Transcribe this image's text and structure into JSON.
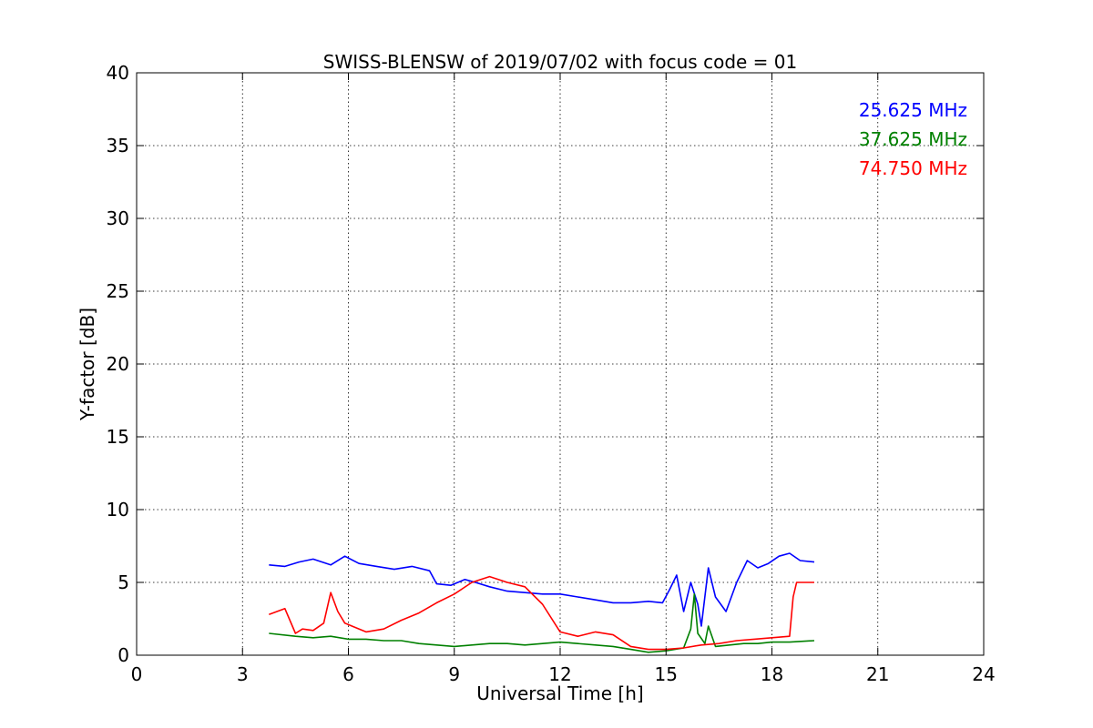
{
  "chart_data": {
    "type": "line",
    "title": "SWISS-BLENSW of 2019/07/02 with focus code = 01",
    "xlabel": "Universal Time [h]",
    "ylabel": "Y-factor [dB]",
    "xlim": [
      0,
      24
    ],
    "ylim": [
      0,
      40
    ],
    "xticks": [
      0,
      3,
      6,
      9,
      12,
      15,
      18,
      21,
      24
    ],
    "yticks": [
      0,
      5,
      10,
      15,
      20,
      25,
      30,
      35,
      40
    ],
    "grid": true,
    "legend_position": "top-right",
    "series": [
      {
        "name": "25.625 MHz",
        "color": "#0000ff",
        "x": [
          3.75,
          4.2,
          4.6,
          5.0,
          5.5,
          5.9,
          6.3,
          6.8,
          7.3,
          7.8,
          8.3,
          8.5,
          8.9,
          9.3,
          9.6,
          10.0,
          10.5,
          11.0,
          11.5,
          12.0,
          12.5,
          13.0,
          13.5,
          14.0,
          14.5,
          14.9,
          15.1,
          15.3,
          15.5,
          15.7,
          15.9,
          16.0,
          16.2,
          16.4,
          16.7,
          17.0,
          17.3,
          17.6,
          17.9,
          18.2,
          18.5,
          18.8,
          19.2
        ],
        "y": [
          6.2,
          6.1,
          6.4,
          6.6,
          6.2,
          6.8,
          6.3,
          6.1,
          5.9,
          6.1,
          5.8,
          4.9,
          4.8,
          5.2,
          5.0,
          4.7,
          4.4,
          4.3,
          4.2,
          4.2,
          4.0,
          3.8,
          3.6,
          3.6,
          3.7,
          3.6,
          4.5,
          5.5,
          3.0,
          5.0,
          3.5,
          2.0,
          6.0,
          4.0,
          3.0,
          5.0,
          6.5,
          6.0,
          6.3,
          6.8,
          7.0,
          6.5,
          6.4
        ]
      },
      {
        "name": "37.625 MHz",
        "color": "#008000",
        "x": [
          3.75,
          4.5,
          5.0,
          5.5,
          6.0,
          6.5,
          7.0,
          7.5,
          8.0,
          8.5,
          9.0,
          9.5,
          10.0,
          10.5,
          11.0,
          11.5,
          12.0,
          12.5,
          13.0,
          13.5,
          14.0,
          14.5,
          15.0,
          15.5,
          15.7,
          15.8,
          15.9,
          16.1,
          16.2,
          16.4,
          16.8,
          17.2,
          17.6,
          18.0,
          18.5,
          19.2
        ],
        "y": [
          1.5,
          1.3,
          1.2,
          1.3,
          1.1,
          1.1,
          1.0,
          1.0,
          0.8,
          0.7,
          0.6,
          0.7,
          0.8,
          0.8,
          0.7,
          0.8,
          0.9,
          0.8,
          0.7,
          0.6,
          0.4,
          0.2,
          0.3,
          0.5,
          1.8,
          4.2,
          1.5,
          0.8,
          2.0,
          0.6,
          0.7,
          0.8,
          0.8,
          0.9,
          0.9,
          1.0
        ]
      },
      {
        "name": "74.750 MHz",
        "color": "#ff0000",
        "x": [
          3.75,
          4.2,
          4.5,
          4.7,
          5.0,
          5.3,
          5.5,
          5.7,
          5.9,
          6.1,
          6.5,
          7.0,
          7.5,
          8.0,
          8.5,
          9.0,
          9.5,
          10.0,
          10.5,
          11.0,
          11.5,
          12.0,
          12.5,
          13.0,
          13.5,
          14.0,
          14.5,
          15.0,
          15.5,
          16.0,
          16.5,
          17.0,
          17.5,
          18.0,
          18.5,
          18.6,
          18.7,
          19.2
        ],
        "y": [
          2.8,
          3.2,
          1.5,
          1.8,
          1.7,
          2.2,
          4.3,
          3.0,
          2.2,
          2.0,
          1.6,
          1.8,
          2.4,
          2.9,
          3.6,
          4.2,
          5.0,
          5.4,
          5.0,
          4.7,
          3.5,
          1.6,
          1.3,
          1.6,
          1.4,
          0.6,
          0.4,
          0.4,
          0.5,
          0.7,
          0.8,
          1.0,
          1.1,
          1.2,
          1.3,
          4.0,
          5.0,
          5.0
        ]
      }
    ]
  }
}
